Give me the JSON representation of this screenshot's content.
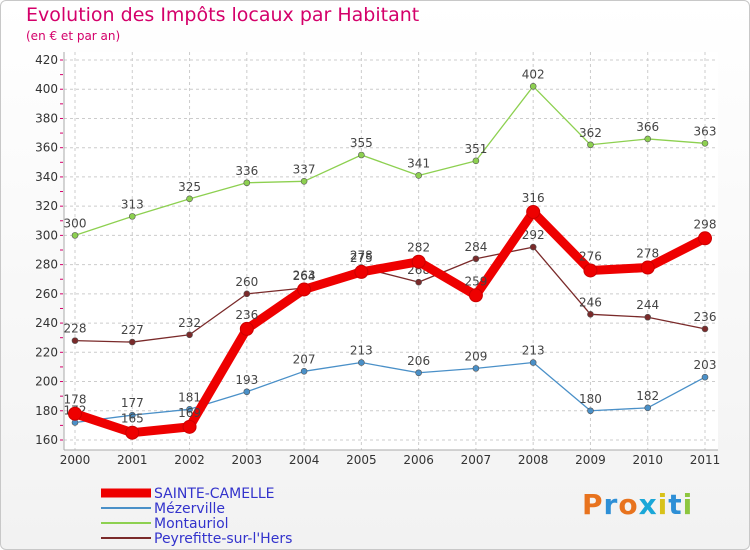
{
  "title": "Evolution des Impôts locaux par Habitant",
  "subtitle": "(en € et par an)",
  "logo": {
    "text": "Proxiti",
    "colors": [
      "#e8731e",
      "#2e8fd6",
      "#e8731e",
      "#1aa7d8",
      "#d8c21a",
      "#2e8fd6",
      "#8dc63f"
    ]
  },
  "chart_data": {
    "type": "line",
    "title": "Evolution des Impôts locaux par Habitant",
    "subtitle": "(en € et par an)",
    "xlabel": "",
    "ylabel": "",
    "categories": [
      "2000",
      "2001",
      "2002",
      "2003",
      "2004",
      "2005",
      "2006",
      "2007",
      "2008",
      "2009",
      "2010",
      "2011"
    ],
    "ylim": [
      160,
      420
    ],
    "yticks": [
      160,
      180,
      200,
      220,
      240,
      260,
      280,
      300,
      320,
      340,
      360,
      380,
      400,
      420
    ],
    "grid": true,
    "legend_position": "bottom-left",
    "series": [
      {
        "name": "Mézerville",
        "color": "#4a90c8",
        "values": [
          172,
          177,
          181,
          193,
          207,
          213,
          206,
          209,
          213,
          180,
          182,
          203
        ]
      },
      {
        "name": "Montauriol",
        "color": "#8dd050",
        "values": [
          300,
          313,
          325,
          336,
          337,
          355,
          341,
          351,
          402,
          362,
          366,
          363
        ]
      },
      {
        "name": "Peyrefitte-sur-l'Hers",
        "color": "#7a2a2a",
        "values": [
          228,
          227,
          232,
          260,
          264,
          278,
          268,
          284,
          292,
          246,
          244,
          236
        ]
      },
      {
        "name": "SAINTE-CAMELLE",
        "color": "#ee0000",
        "values": [
          178,
          165,
          169,
          236,
          263,
          275,
          282,
          259,
          316,
          276,
          278,
          298
        ]
      }
    ],
    "legend_order": [
      "SAINTE-CAMELLE",
      "Mézerville",
      "Montauriol",
      "Peyrefitte-sur-l'Hers"
    ],
    "legend_text_color": "#3333cc"
  }
}
